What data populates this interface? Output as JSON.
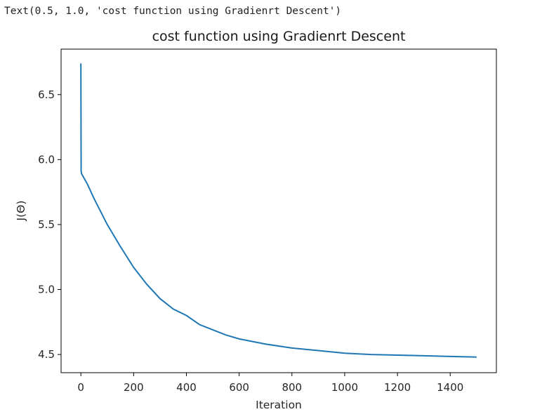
{
  "output_text": "Text(0.5, 1.0, 'cost function using Gradienrt Descent')",
  "chart_data": {
    "type": "line",
    "title": "cost function using Gradienrt Descent",
    "xlabel": "Iteration",
    "ylabel": "J(Θ)",
    "xlim": [
      -75,
      1575
    ],
    "ylim": [
      4.36,
      6.85
    ],
    "xticks": [
      0,
      200,
      400,
      600,
      800,
      1000,
      1200,
      1400
    ],
    "xtick_labels": [
      "0",
      "200",
      "400",
      "600",
      "800",
      "1000",
      "1200",
      "1400"
    ],
    "yticks": [
      4.5,
      5.0,
      5.5,
      6.0,
      6.5
    ],
    "ytick_labels": [
      "4.5",
      "5.0",
      "5.5",
      "6.0",
      "6.5"
    ],
    "grid": false,
    "line_color": "#1f77b4",
    "series": [
      {
        "x": [
          0,
          1,
          3,
          25,
          50,
          75,
          100,
          150,
          200,
          250,
          300,
          350,
          400,
          450,
          500,
          550,
          600,
          700,
          800,
          900,
          1000,
          1100,
          1200,
          1300,
          1400,
          1500
        ],
        "y": [
          6.74,
          5.91,
          5.89,
          5.81,
          5.7,
          5.6,
          5.5,
          5.33,
          5.17,
          5.04,
          4.93,
          4.85,
          4.8,
          4.73,
          4.69,
          4.65,
          4.62,
          4.58,
          4.55,
          4.53,
          4.51,
          4.5,
          4.495,
          4.49,
          4.485,
          4.48
        ]
      }
    ]
  }
}
